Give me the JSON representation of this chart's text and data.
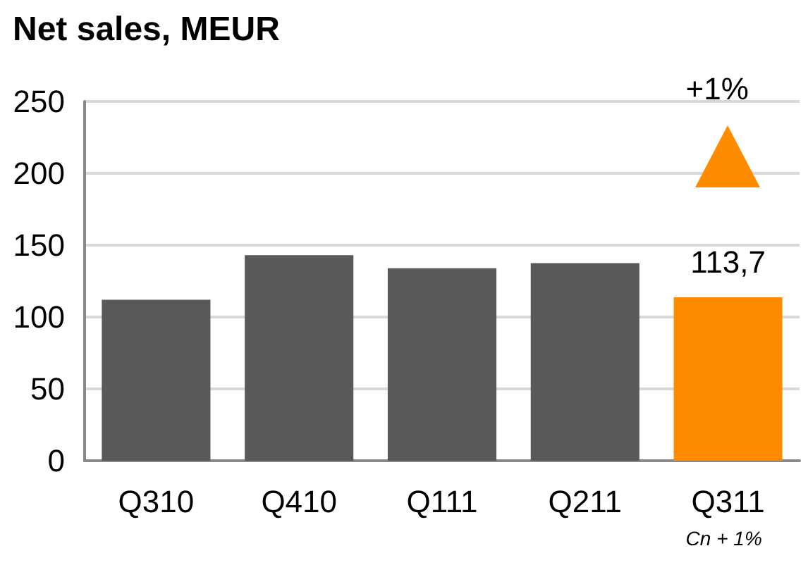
{
  "chart_data": {
    "type": "bar",
    "title": "Net sales, MEUR",
    "categories": [
      "Q310",
      "Q410",
      "Q111",
      "Q211",
      "Q311"
    ],
    "values": [
      112,
      143,
      134,
      137.5,
      113.7
    ],
    "colors": [
      "#595959",
      "#595959",
      "#595959",
      "#595959",
      "#ff8c00"
    ],
    "value_labels": [
      null,
      null,
      null,
      null,
      "113,7"
    ],
    "annotations": [
      "+1%",
      "Cn + 1%"
    ],
    "ylim": [
      0,
      250
    ],
    "yticks": [
      0,
      50,
      100,
      150,
      200,
      250
    ],
    "grid": "y"
  }
}
